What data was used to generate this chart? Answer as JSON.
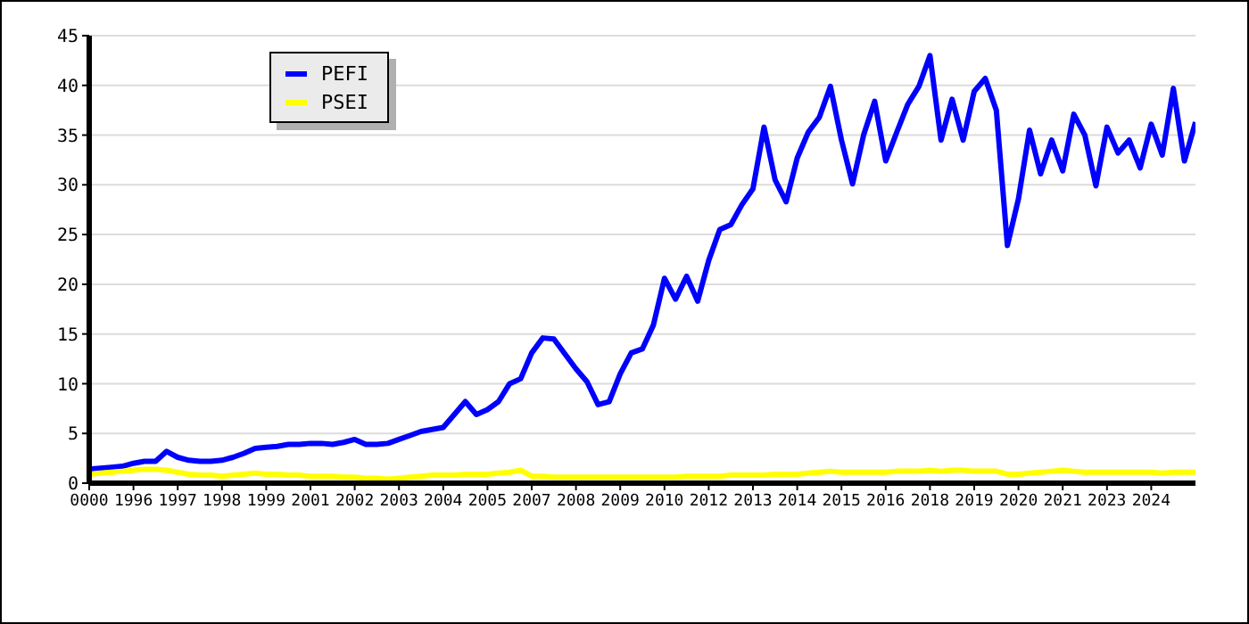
{
  "chart_data": {
    "type": "line",
    "legend": "top left",
    "grid": "y",
    "marker": "none",
    "line_style": "solid",
    "categories": [
      "0000",
      null,
      null,
      null,
      "1996",
      null,
      null,
      null,
      "1997",
      null,
      null,
      null,
      "1998",
      null,
      null,
      null,
      "1999",
      null,
      null,
      null,
      "2001",
      null,
      null,
      null,
      "2002",
      null,
      null,
      null,
      "2003",
      null,
      null,
      null,
      "2004",
      null,
      null,
      null,
      "2005",
      null,
      null,
      null,
      "2007",
      null,
      null,
      null,
      "2008",
      null,
      null,
      null,
      "2009",
      null,
      null,
      null,
      "2010",
      null,
      null,
      null,
      "2012",
      null,
      null,
      null,
      "2013",
      null,
      null,
      null,
      "2014",
      null,
      null,
      null,
      "2015",
      null,
      null,
      null,
      "2016",
      null,
      null,
      null,
      "2018",
      null,
      null,
      null,
      "2019",
      null,
      null,
      null,
      "2020",
      null,
      null,
      null,
      "2021",
      null,
      null,
      null,
      "2023",
      null,
      null,
      null,
      "2024",
      null,
      null,
      null,
      null
    ],
    "ylim": [
      0,
      45
    ],
    "yticks": [
      0,
      5,
      10,
      15,
      20,
      25,
      30,
      35,
      40,
      45
    ],
    "series": [
      {
        "name": "PEFI",
        "color": "#0000ff",
        "values": [
          1.4,
          1.5,
          1.6,
          1.7,
          2.0,
          2.2,
          2.2,
          3.2,
          2.6,
          2.3,
          2.2,
          2.2,
          2.3,
          2.6,
          3.0,
          3.5,
          3.6,
          3.7,
          3.9,
          3.9,
          4.0,
          4.0,
          3.9,
          4.1,
          4.4,
          3.9,
          3.9,
          4.0,
          4.4,
          4.8,
          5.2,
          5.4,
          5.6,
          6.9,
          8.2,
          6.9,
          7.4,
          8.2,
          10.0,
          10.5,
          13.1,
          14.6,
          14.5,
          13.0,
          11.5,
          10.2,
          7.9,
          8.2,
          11.0,
          13.1,
          13.5,
          15.9,
          20.6,
          18.5,
          20.8,
          18.3,
          22.4,
          25.5,
          26.0,
          28.0,
          29.6,
          35.8,
          30.5,
          28.3,
          32.7,
          35.3,
          36.8,
          39.9,
          34.5,
          30.1,
          35.0,
          38.4,
          32.4,
          35.3,
          38.1,
          39.9,
          43.0,
          34.5,
          38.6,
          34.5,
          39.4,
          40.7,
          37.5,
          23.9,
          28.6,
          35.5,
          31.1,
          34.5,
          31.4,
          37.1,
          35.0,
          29.9,
          35.8,
          33.2,
          34.5,
          31.7,
          36.1,
          33.0,
          39.7,
          32.4,
          36.3
        ]
      },
      {
        "name": "PSEI",
        "color": "#ffff00",
        "values": [
          0.9,
          1.0,
          1.1,
          1.2,
          1.3,
          1.4,
          1.4,
          1.3,
          1.1,
          0.9,
          0.8,
          0.8,
          0.7,
          0.8,
          0.9,
          1.0,
          0.9,
          0.9,
          0.8,
          0.8,
          0.7,
          0.7,
          0.7,
          0.6,
          0.6,
          0.5,
          0.5,
          0.4,
          0.5,
          0.6,
          0.7,
          0.8,
          0.8,
          0.8,
          0.9,
          0.9,
          0.9,
          1.0,
          1.1,
          1.3,
          0.7,
          0.7,
          0.6,
          0.6,
          0.6,
          0.6,
          0.6,
          0.6,
          0.6,
          0.6,
          0.6,
          0.6,
          0.6,
          0.6,
          0.7,
          0.7,
          0.7,
          0.7,
          0.8,
          0.8,
          0.8,
          0.8,
          0.9,
          0.9,
          0.9,
          1.0,
          1.1,
          1.2,
          1.1,
          1.1,
          1.1,
          1.1,
          1.1,
          1.2,
          1.2,
          1.2,
          1.3,
          1.2,
          1.3,
          1.3,
          1.2,
          1.2,
          1.2,
          0.9,
          0.9,
          1.0,
          1.1,
          1.2,
          1.3,
          1.2,
          1.1,
          1.1,
          1.1,
          1.1,
          1.1,
          1.1,
          1.1,
          1.0,
          1.1,
          1.1,
          1.1
        ]
      }
    ]
  }
}
